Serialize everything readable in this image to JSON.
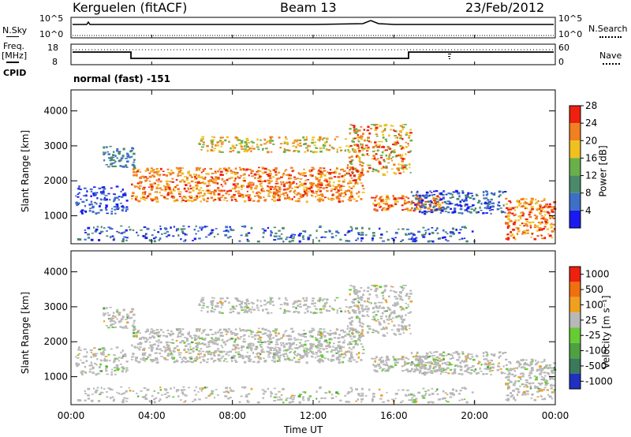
{
  "header": {
    "station": "Kerguelen (fitACF)",
    "beam": "Beam 13",
    "date": "23/Feb/2012"
  },
  "sky_panel": {
    "left_label": "N.Sky",
    "left_ticks": [
      "10^5",
      "10^0"
    ],
    "right_ticks": [
      "10^5",
      "10^0"
    ],
    "right_label": "N.Search"
  },
  "freq_panel": {
    "left_label_1": "Freq.",
    "left_label_2": "[MHz]",
    "left_ticks": [
      "18",
      "8"
    ],
    "right_ticks": [
      "60",
      "0"
    ],
    "right_label": "Nave",
    "cpid_label": "CPID",
    "mode_text": "normal (fast) -151"
  },
  "chart_data": [
    {
      "type": "heatmap",
      "quantity": "power",
      "ylabel": "Slant Range [km]",
      "ylim": [
        200,
        4600
      ],
      "yticks": [
        "1000",
        "2000",
        "3000",
        "4000"
      ],
      "colorbar_label": "Power [dB]",
      "colorbar_ticks": [
        "4",
        "8",
        "12",
        "16",
        "20",
        "24",
        "28"
      ],
      "colorbar_colors": [
        "#1a1aee",
        "#3d6fc6",
        "#4a8a6a",
        "#6ab04a",
        "#f0c020",
        "#f08020",
        "#ee2010"
      ]
    },
    {
      "type": "heatmap",
      "quantity": "velocity",
      "ylabel": "Slant Range [km]",
      "ylim": [
        200,
        4600
      ],
      "yticks": [
        "1000",
        "2000",
        "3000",
        "4000"
      ],
      "colorbar_label": "Velocity [m s⁻¹]",
      "colorbar_ticks": [
        "1000",
        "500",
        "100",
        "25",
        "-25",
        "-100",
        "-500",
        "-1000"
      ],
      "colorbar_colors": [
        "#2030c0",
        "#3a7a5a",
        "#4fa040",
        "#66cc33",
        "#b8b8b8",
        "#f0a020",
        "#f07010",
        "#ee2010"
      ]
    }
  ],
  "x_axis": {
    "label": "Time UT",
    "ticks": [
      "00:00",
      "04:00",
      "08:00",
      "12:00",
      "16:00",
      "20:00",
      "00:00"
    ]
  }
}
